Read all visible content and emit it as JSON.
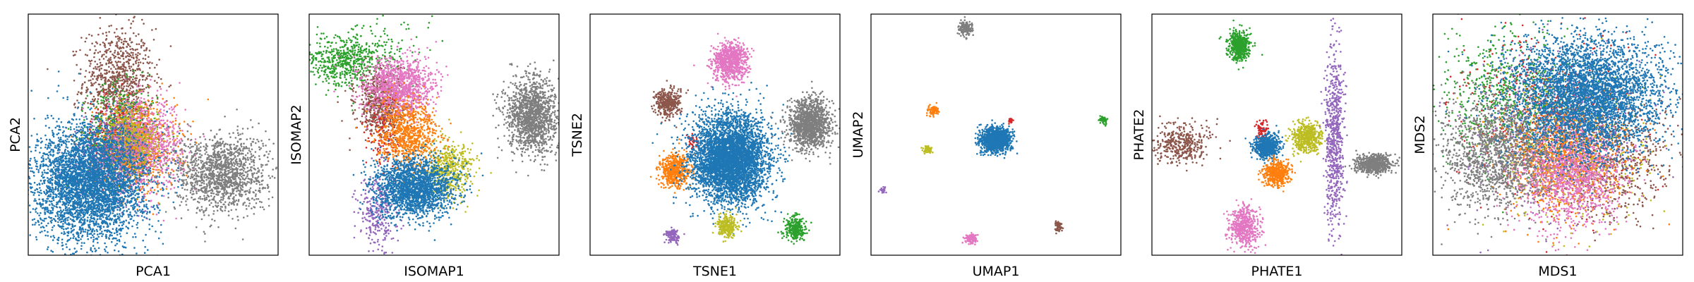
{
  "colors": {
    "c0": "#1f77b4",
    "c1": "#ff7f0e",
    "c2": "#2ca02c",
    "c3": "#d62728",
    "c4": "#9467bd",
    "c5": "#8c564b",
    "c6": "#e377c2",
    "c7": "#7f7f7f",
    "c8": "#bcbd22"
  },
  "chart_data": [
    {
      "type": "scatter",
      "title": "",
      "xlabel": "PCA1",
      "ylabel": "PCA2",
      "xlim": [
        0,
        100
      ],
      "ylim": [
        0,
        100
      ],
      "grid": false,
      "ticks": false,
      "legend": "none",
      "clusters": [
        {
          "color": "c5",
          "cx": 36,
          "cy": 72,
          "sx": 7,
          "sy": 11,
          "n": 900
        },
        {
          "color": "c2",
          "cx": 38,
          "cy": 50,
          "sx": 7,
          "sy": 10,
          "n": 700
        },
        {
          "color": "c3",
          "cx": 37,
          "cy": 48,
          "sx": 6,
          "sy": 8,
          "n": 300
        },
        {
          "color": "c1",
          "cx": 43,
          "cy": 45,
          "sx": 8,
          "sy": 9,
          "n": 900
        },
        {
          "color": "c6",
          "cx": 46,
          "cy": 46,
          "sx": 8,
          "sy": 9,
          "n": 900
        },
        {
          "color": "c8",
          "cx": 40,
          "cy": 47,
          "sx": 6,
          "sy": 7,
          "n": 400
        },
        {
          "color": "c4",
          "cx": 33,
          "cy": 40,
          "sx": 7,
          "sy": 8,
          "n": 400
        },
        {
          "color": "c7",
          "cx": 77,
          "cy": 34,
          "sx": 9,
          "sy": 8,
          "n": 1400
        },
        {
          "color": "c0",
          "cx": 25,
          "cy": 30,
          "sx": 11,
          "sy": 12,
          "n": 4000
        }
      ]
    },
    {
      "type": "scatter",
      "title": "",
      "xlabel": "ISOMAP1",
      "ylabel": "ISOMAP2",
      "xlim": [
        0,
        100
      ],
      "ylim": [
        0,
        100
      ],
      "grid": false,
      "ticks": false,
      "legend": "none",
      "clusters": [
        {
          "color": "c2",
          "cx": 14,
          "cy": 80,
          "sx": 8,
          "sy": 5,
          "n": 500
        },
        {
          "color": "c2",
          "cx": 25,
          "cy": 85,
          "sx": 10,
          "sy": 6,
          "n": 150
        },
        {
          "color": "c5",
          "cx": 29,
          "cy": 63,
          "sx": 5,
          "sy": 7,
          "n": 700
        },
        {
          "color": "c6",
          "cx": 36,
          "cy": 70,
          "sx": 7,
          "sy": 6,
          "n": 1100
        },
        {
          "color": "c3",
          "cx": 30,
          "cy": 48,
          "sx": 4,
          "sy": 8,
          "n": 120
        },
        {
          "color": "c4",
          "cx": 28,
          "cy": 17,
          "sx": 4,
          "sy": 8,
          "n": 300
        },
        {
          "color": "c8",
          "cx": 56,
          "cy": 36,
          "sx": 5,
          "sy": 6,
          "n": 500
        },
        {
          "color": "c1",
          "cx": 40,
          "cy": 50,
          "sx": 6,
          "sy": 7,
          "n": 800
        },
        {
          "color": "c0",
          "cx": 42,
          "cy": 28,
          "sx": 8,
          "sy": 6,
          "n": 2000
        },
        {
          "color": "c7",
          "cx": 89,
          "cy": 58,
          "sx": 5,
          "sy": 8,
          "n": 1400
        }
      ]
    },
    {
      "type": "scatter",
      "title": "",
      "xlabel": "TSNE1",
      "ylabel": "TSNE2",
      "xlim": [
        0,
        100
      ],
      "ylim": [
        0,
        100
      ],
      "grid": false,
      "ticks": false,
      "legend": "none",
      "clusters": [
        {
          "color": "c6",
          "cx": 56,
          "cy": 80,
          "sx": 3.5,
          "sy": 4,
          "n": 800
        },
        {
          "color": "c5",
          "cx": 31,
          "cy": 63,
          "sx": 2.5,
          "sy": 3,
          "n": 350
        },
        {
          "color": "c3",
          "cx": 41,
          "cy": 47,
          "sx": 1,
          "sy": 1.5,
          "n": 40
        },
        {
          "color": "c1",
          "cx": 34,
          "cy": 35,
          "sx": 3,
          "sy": 3.5,
          "n": 500
        },
        {
          "color": "c0",
          "cx": 56,
          "cy": 40,
          "sx": 7.5,
          "sy": 9,
          "n": 4500
        },
        {
          "color": "c7",
          "cx": 88,
          "cy": 54,
          "sx": 4,
          "sy": 5,
          "n": 1300
        },
        {
          "color": "c8",
          "cx": 55,
          "cy": 12,
          "sx": 2,
          "sy": 2.5,
          "n": 250
        },
        {
          "color": "c2",
          "cx": 82,
          "cy": 11,
          "sx": 2,
          "sy": 2.5,
          "n": 300
        },
        {
          "color": "c4",
          "cx": 33,
          "cy": 8,
          "sx": 1.5,
          "sy": 1.5,
          "n": 120
        }
      ]
    },
    {
      "type": "scatter",
      "title": "",
      "xlabel": "UMAP1",
      "ylabel": "UMAP2",
      "xlim": [
        0,
        100
      ],
      "ylim": [
        0,
        100
      ],
      "grid": false,
      "ticks": false,
      "legend": "none",
      "clusters": [
        {
          "color": "c7",
          "cx": 38,
          "cy": 94,
          "sx": 1.5,
          "sy": 1.5,
          "n": 150
        },
        {
          "color": "c1",
          "cx": 25,
          "cy": 60,
          "sx": 1,
          "sy": 1,
          "n": 100
        },
        {
          "color": "c3",
          "cx": 56,
          "cy": 56,
          "sx": 0.6,
          "sy": 0.8,
          "n": 20
        },
        {
          "color": "c0",
          "cx": 50,
          "cy": 48,
          "sx": 3,
          "sy": 2.5,
          "n": 1200
        },
        {
          "color": "c8",
          "cx": 23,
          "cy": 44,
          "sx": 0.8,
          "sy": 0.8,
          "n": 60
        },
        {
          "color": "c2",
          "cx": 93,
          "cy": 56,
          "sx": 0.7,
          "sy": 0.8,
          "n": 60
        },
        {
          "color": "c4",
          "cx": 5,
          "cy": 27,
          "sx": 0.6,
          "sy": 0.6,
          "n": 25
        },
        {
          "color": "c6",
          "cx": 40,
          "cy": 7,
          "sx": 1.2,
          "sy": 1,
          "n": 120
        },
        {
          "color": "c5",
          "cx": 75,
          "cy": 12,
          "sx": 0.7,
          "sy": 1.2,
          "n": 60
        }
      ]
    },
    {
      "type": "scatter",
      "title": "",
      "xlabel": "PHATE1",
      "ylabel": "PHATE2",
      "xlim": [
        0,
        100
      ],
      "ylim": [
        0,
        100
      ],
      "grid": false,
      "ticks": false,
      "legend": "none",
      "clusters": [
        {
          "color": "c2",
          "cx": 35,
          "cy": 87,
          "sx": 2.2,
          "sy": 3,
          "n": 500
        },
        {
          "color": "c5",
          "cx": 12,
          "cy": 46,
          "sx": 6,
          "sy": 4,
          "n": 400
        },
        {
          "color": "c3",
          "cx": 44,
          "cy": 52,
          "sx": 1.2,
          "sy": 2,
          "n": 80
        },
        {
          "color": "c0",
          "cx": 46,
          "cy": 45,
          "sx": 2.5,
          "sy": 2.5,
          "n": 600
        },
        {
          "color": "c1",
          "cx": 50,
          "cy": 34,
          "sx": 2.5,
          "sy": 2.5,
          "n": 500
        },
        {
          "color": "c8",
          "cx": 62,
          "cy": 49,
          "sx": 3,
          "sy": 3,
          "n": 500
        },
        {
          "color": "c4",
          "cx": 73,
          "cy": 50,
          "sx": 1.8,
          "sy": 18,
          "n": 700
        },
        {
          "color": "c7",
          "cx": 89,
          "cy": 38,
          "sx": 3.5,
          "sy": 2,
          "n": 600
        },
        {
          "color": "c6",
          "cx": 37,
          "cy": 12,
          "sx": 3,
          "sy": 4,
          "n": 500
        }
      ]
    },
    {
      "type": "scatter",
      "title": "",
      "xlabel": "MDS1",
      "ylabel": "MDS2",
      "xlim": [
        0,
        100
      ],
      "ylim": [
        0,
        100
      ],
      "grid": false,
      "ticks": false,
      "legend": "none",
      "clusters": [
        {
          "color": "c2",
          "cx": 30,
          "cy": 65,
          "sx": 14,
          "sy": 14,
          "n": 700
        },
        {
          "color": "c5",
          "cx": 72,
          "cy": 40,
          "sx": 12,
          "sy": 12,
          "n": 700
        },
        {
          "color": "c3",
          "cx": 45,
          "cy": 55,
          "sx": 16,
          "sy": 16,
          "n": 500
        },
        {
          "color": "c4",
          "cx": 50,
          "cy": 50,
          "sx": 17,
          "sy": 17,
          "n": 500
        },
        {
          "color": "c8",
          "cx": 55,
          "cy": 45,
          "sx": 15,
          "sy": 15,
          "n": 500
        },
        {
          "color": "c1",
          "cx": 52,
          "cy": 40,
          "sx": 12,
          "sy": 12,
          "n": 1000
        },
        {
          "color": "c6",
          "cx": 55,
          "cy": 33,
          "sx": 11,
          "sy": 11,
          "n": 1200
        },
        {
          "color": "c7",
          "cx": 25,
          "cy": 42,
          "sx": 11,
          "sy": 12,
          "n": 1500
        },
        {
          "color": "c0",
          "cx": 62,
          "cy": 66,
          "sx": 15,
          "sy": 12,
          "n": 4000
        }
      ]
    }
  ]
}
